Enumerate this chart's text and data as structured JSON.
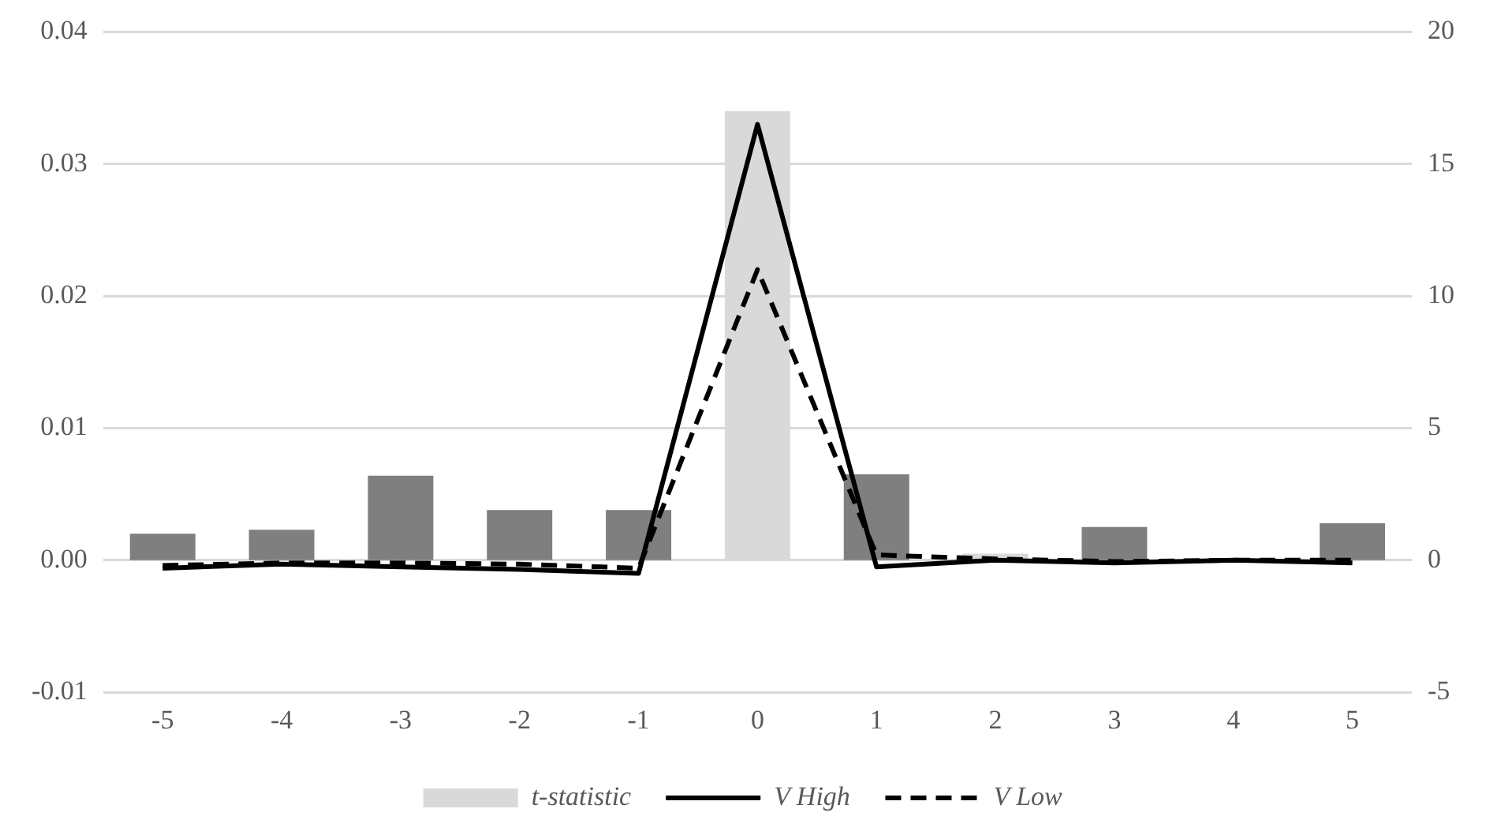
{
  "chart_data": {
    "type": "bar",
    "categories": [
      "-5",
      "-4",
      "-3",
      "-2",
      "-1",
      "0",
      "1",
      "2",
      "3",
      "4",
      "5"
    ],
    "series": [
      {
        "name": "t-statistic",
        "axis": "y2",
        "color": "#d9d9d9",
        "colors": [
          "#7f7f7f",
          "#7f7f7f",
          "#7f7f7f",
          "#7f7f7f",
          "#7f7f7f",
          "#d9d9d9",
          "#7f7f7f",
          "#d9d9d9",
          "#7f7f7f",
          "#7f7f7f",
          "#7f7f7f"
        ],
        "values": [
          1.0,
          1.15,
          3.2,
          1.9,
          1.9,
          17.0,
          3.25,
          0.25,
          1.26,
          0.05,
          1.4
        ]
      },
      {
        "name": "V High",
        "type": "line",
        "color": "#000000",
        "line_style": "solid",
        "values": [
          -0.0006,
          -0.0003,
          -0.0005,
          -0.0007,
          -0.001,
          0.033,
          -0.0005,
          0,
          -0.0002,
          0,
          -0.0002
        ]
      },
      {
        "name": "V Low",
        "type": "line",
        "color": "#000000",
        "line_style": "dashed",
        "values": [
          -0.0004,
          -0.0002,
          -0.0002,
          -0.0003,
          -0.0006,
          0.022,
          0.0004,
          0.0001,
          -0.0001,
          0,
          0
        ]
      }
    ],
    "ylim": [
      -0.01,
      0.04
    ],
    "yticks": [
      {
        "value": -0.01,
        "label": "-0.01"
      },
      {
        "value": 0,
        "label": "0.00"
      },
      {
        "value": 0.01,
        "label": "0.01"
      },
      {
        "value": 0.02,
        "label": "0.02"
      },
      {
        "value": 0.03,
        "label": "0.03"
      },
      {
        "value": 0.04,
        "label": "0.04"
      }
    ],
    "y2lim": [
      -5,
      20
    ],
    "y2ticks": [
      -5,
      0,
      5,
      10,
      15,
      20
    ],
    "grid": "y",
    "legend": "bottom",
    "marker": "none"
  }
}
